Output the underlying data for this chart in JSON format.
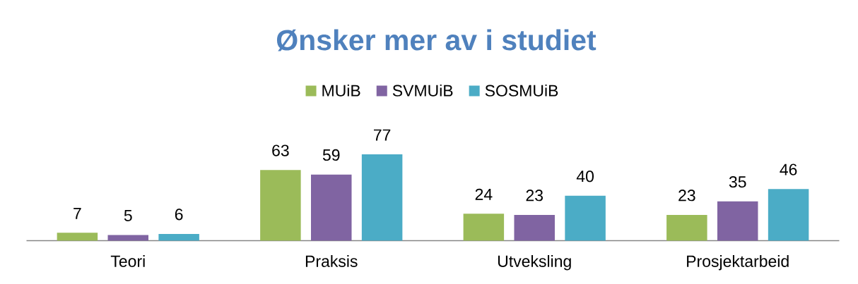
{
  "chart_data": {
    "type": "bar",
    "title": "Ønsker mer av i studiet",
    "categories": [
      "Teori",
      "Praksis",
      "Utveksling",
      "Prosjektarbeid"
    ],
    "series": [
      {
        "name": "MUiB",
        "color": "#9bbb59",
        "values": [
          7,
          63,
          24,
          23
        ]
      },
      {
        "name": "SVMUiB",
        "color": "#8064a2",
        "values": [
          5,
          59,
          23,
          35
        ]
      },
      {
        "name": "SOSMUiB",
        "color": "#4bacc6",
        "values": [
          6,
          77,
          40,
          46
        ]
      }
    ],
    "data_labels": true,
    "legend": "top"
  }
}
